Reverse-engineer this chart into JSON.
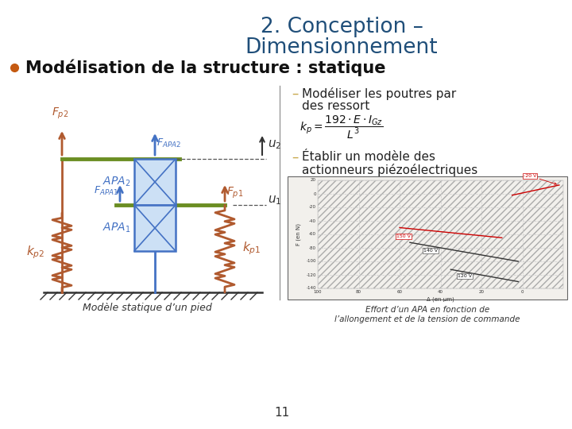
{
  "bg_color": "#ffffff",
  "title_line1": "2. Conception –",
  "title_line2": "Dimensionnement",
  "title_color": "#1f4e79",
  "bullet_color": "#c55a11",
  "bullet_text": "Modélisation de la structure : statique",
  "dash_color": "#c8a84b",
  "point_text_color": "#222222",
  "caption_left": "Modèle statique d’un pied",
  "caption_right_line1": "Effort d’un APA en fonction de",
  "caption_right_line2": "l’allongement et de la tension de commande",
  "page_number": "11",
  "left_decor_color": "#c8a84b",
  "spring_color": "#b05a2f",
  "beam_color": "#6b8e23",
  "apa_face": "#cce0f5",
  "apa_edge": "#4472c4",
  "arrow_blue": "#4472c4",
  "text_blue": "#4472c4",
  "ground_color": "#333333",
  "separator_color": "#999999",
  "graph_bg": "#f2f0ec",
  "graph_hatch": "#bbbbbb",
  "graph_border": "#666666"
}
